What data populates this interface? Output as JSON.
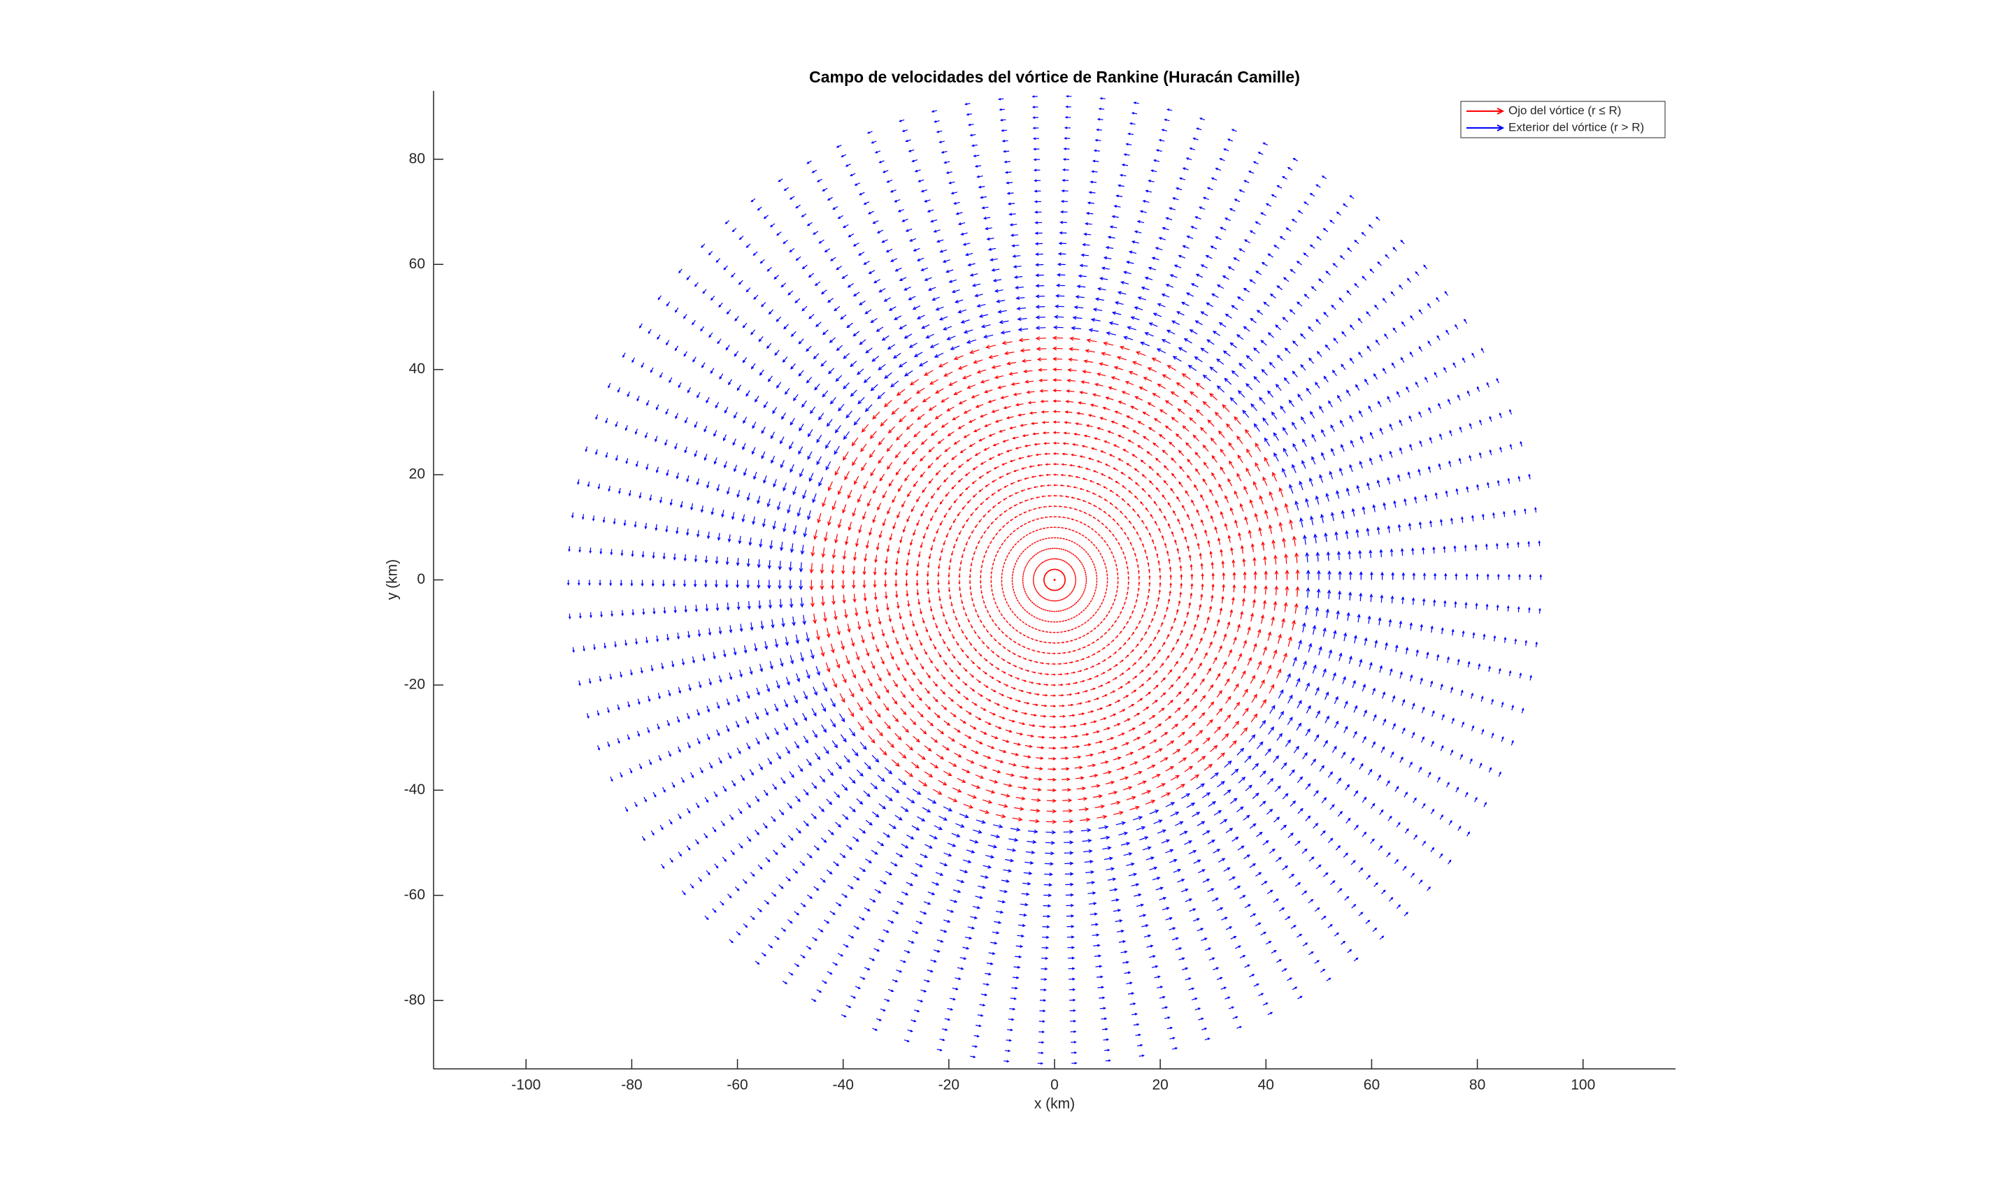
{
  "chart_data": {
    "type": "quiver",
    "title": "Campo de velocidades del vórtice de Rankine (Huracán Camille)",
    "x_label": "x (km)",
    "y_label": "y (km)",
    "xlim": [
      -117.5,
      117.5
    ],
    "ylim": [
      -93,
      93
    ],
    "xticks": [
      -100,
      -80,
      -60,
      -40,
      -20,
      0,
      20,
      40,
      60,
      80,
      100
    ],
    "yticks": [
      -80,
      -60,
      -40,
      -20,
      0,
      20,
      40,
      60,
      80
    ],
    "legend": "top-right",
    "theta": [
      0,
      4,
      8,
      12,
      16,
      20,
      24,
      28,
      32,
      36,
      40,
      44,
      48,
      52,
      56,
      60,
      64,
      68,
      72,
      76,
      80,
      84,
      88,
      92,
      96,
      100,
      104,
      108,
      112,
      116,
      120,
      124,
      128,
      132,
      136,
      140,
      144,
      148,
      152,
      156,
      160,
      164,
      168,
      172,
      176,
      180,
      184,
      188,
      192,
      196,
      200,
      204,
      208,
      212,
      216,
      220,
      224,
      228,
      232,
      236,
      240,
      244,
      248,
      252,
      256,
      260,
      264,
      268,
      272,
      276,
      280,
      284,
      288,
      292,
      296,
      300,
      304,
      308,
      312,
      316,
      320,
      324,
      328,
      332,
      336,
      340,
      344,
      348,
      352,
      356
    ],
    "series": [
      {
        "name": "Ojo del vórtice (r ≤ R)",
        "color": "#ff0000",
        "r": [
          0,
          2,
          4,
          6,
          8,
          10,
          12,
          14,
          16,
          18,
          20,
          22,
          24,
          26,
          28,
          30,
          32,
          34,
          36,
          38,
          40,
          42,
          44,
          46
        ],
        "speed": [
          0,
          3.7,
          7.4,
          11.1,
          14.8,
          18.5,
          22.2,
          25.9,
          29.6,
          33.3,
          37,
          40.7,
          44.3,
          48,
          51.7,
          55.4,
          59.1,
          62.8,
          66.5,
          70.2,
          73.9,
          77.6,
          81.3,
          85
        ]
      },
      {
        "name": "Exterior del vórtice (r > R)",
        "color": "#0000ff",
        "r": [
          48,
          50,
          52,
          54,
          56,
          58,
          60,
          62,
          64,
          66,
          68,
          70,
          72,
          74,
          76,
          78,
          80,
          82,
          84,
          86,
          88,
          90,
          92
        ],
        "speed": [
          81.5,
          78.2,
          75.2,
          72.4,
          69.8,
          67.4,
          65.2,
          63.1,
          61.1,
          59.2,
          57.5,
          55.9,
          54.3,
          52.8,
          51.4,
          50.1,
          48.9,
          47.7,
          46.5,
          45.5,
          44.4,
          43.4,
          42.5
        ]
      }
    ]
  }
}
